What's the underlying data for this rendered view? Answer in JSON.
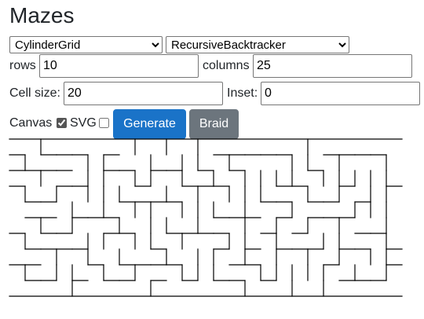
{
  "title": "Mazes",
  "controls": {
    "grid_type": {
      "selected": "CylinderGrid"
    },
    "algorithm": {
      "selected": "RecursiveBacktracker"
    },
    "rows": {
      "label": "rows",
      "value": "10"
    },
    "columns": {
      "label": "columns",
      "value": "25"
    },
    "cell_size": {
      "label": "Cell size:",
      "value": "20"
    },
    "inset": {
      "label": "Inset:",
      "value": "0"
    },
    "canvas": {
      "label": "Canvas",
      "checked": true
    },
    "svg": {
      "label": "SVG",
      "checked": false
    },
    "generate_label": "Generate",
    "braid_label": "Braid"
  },
  "colors": {
    "generate": "#1a73c8",
    "braid": "#6c757d",
    "wall": "#000000"
  }
}
